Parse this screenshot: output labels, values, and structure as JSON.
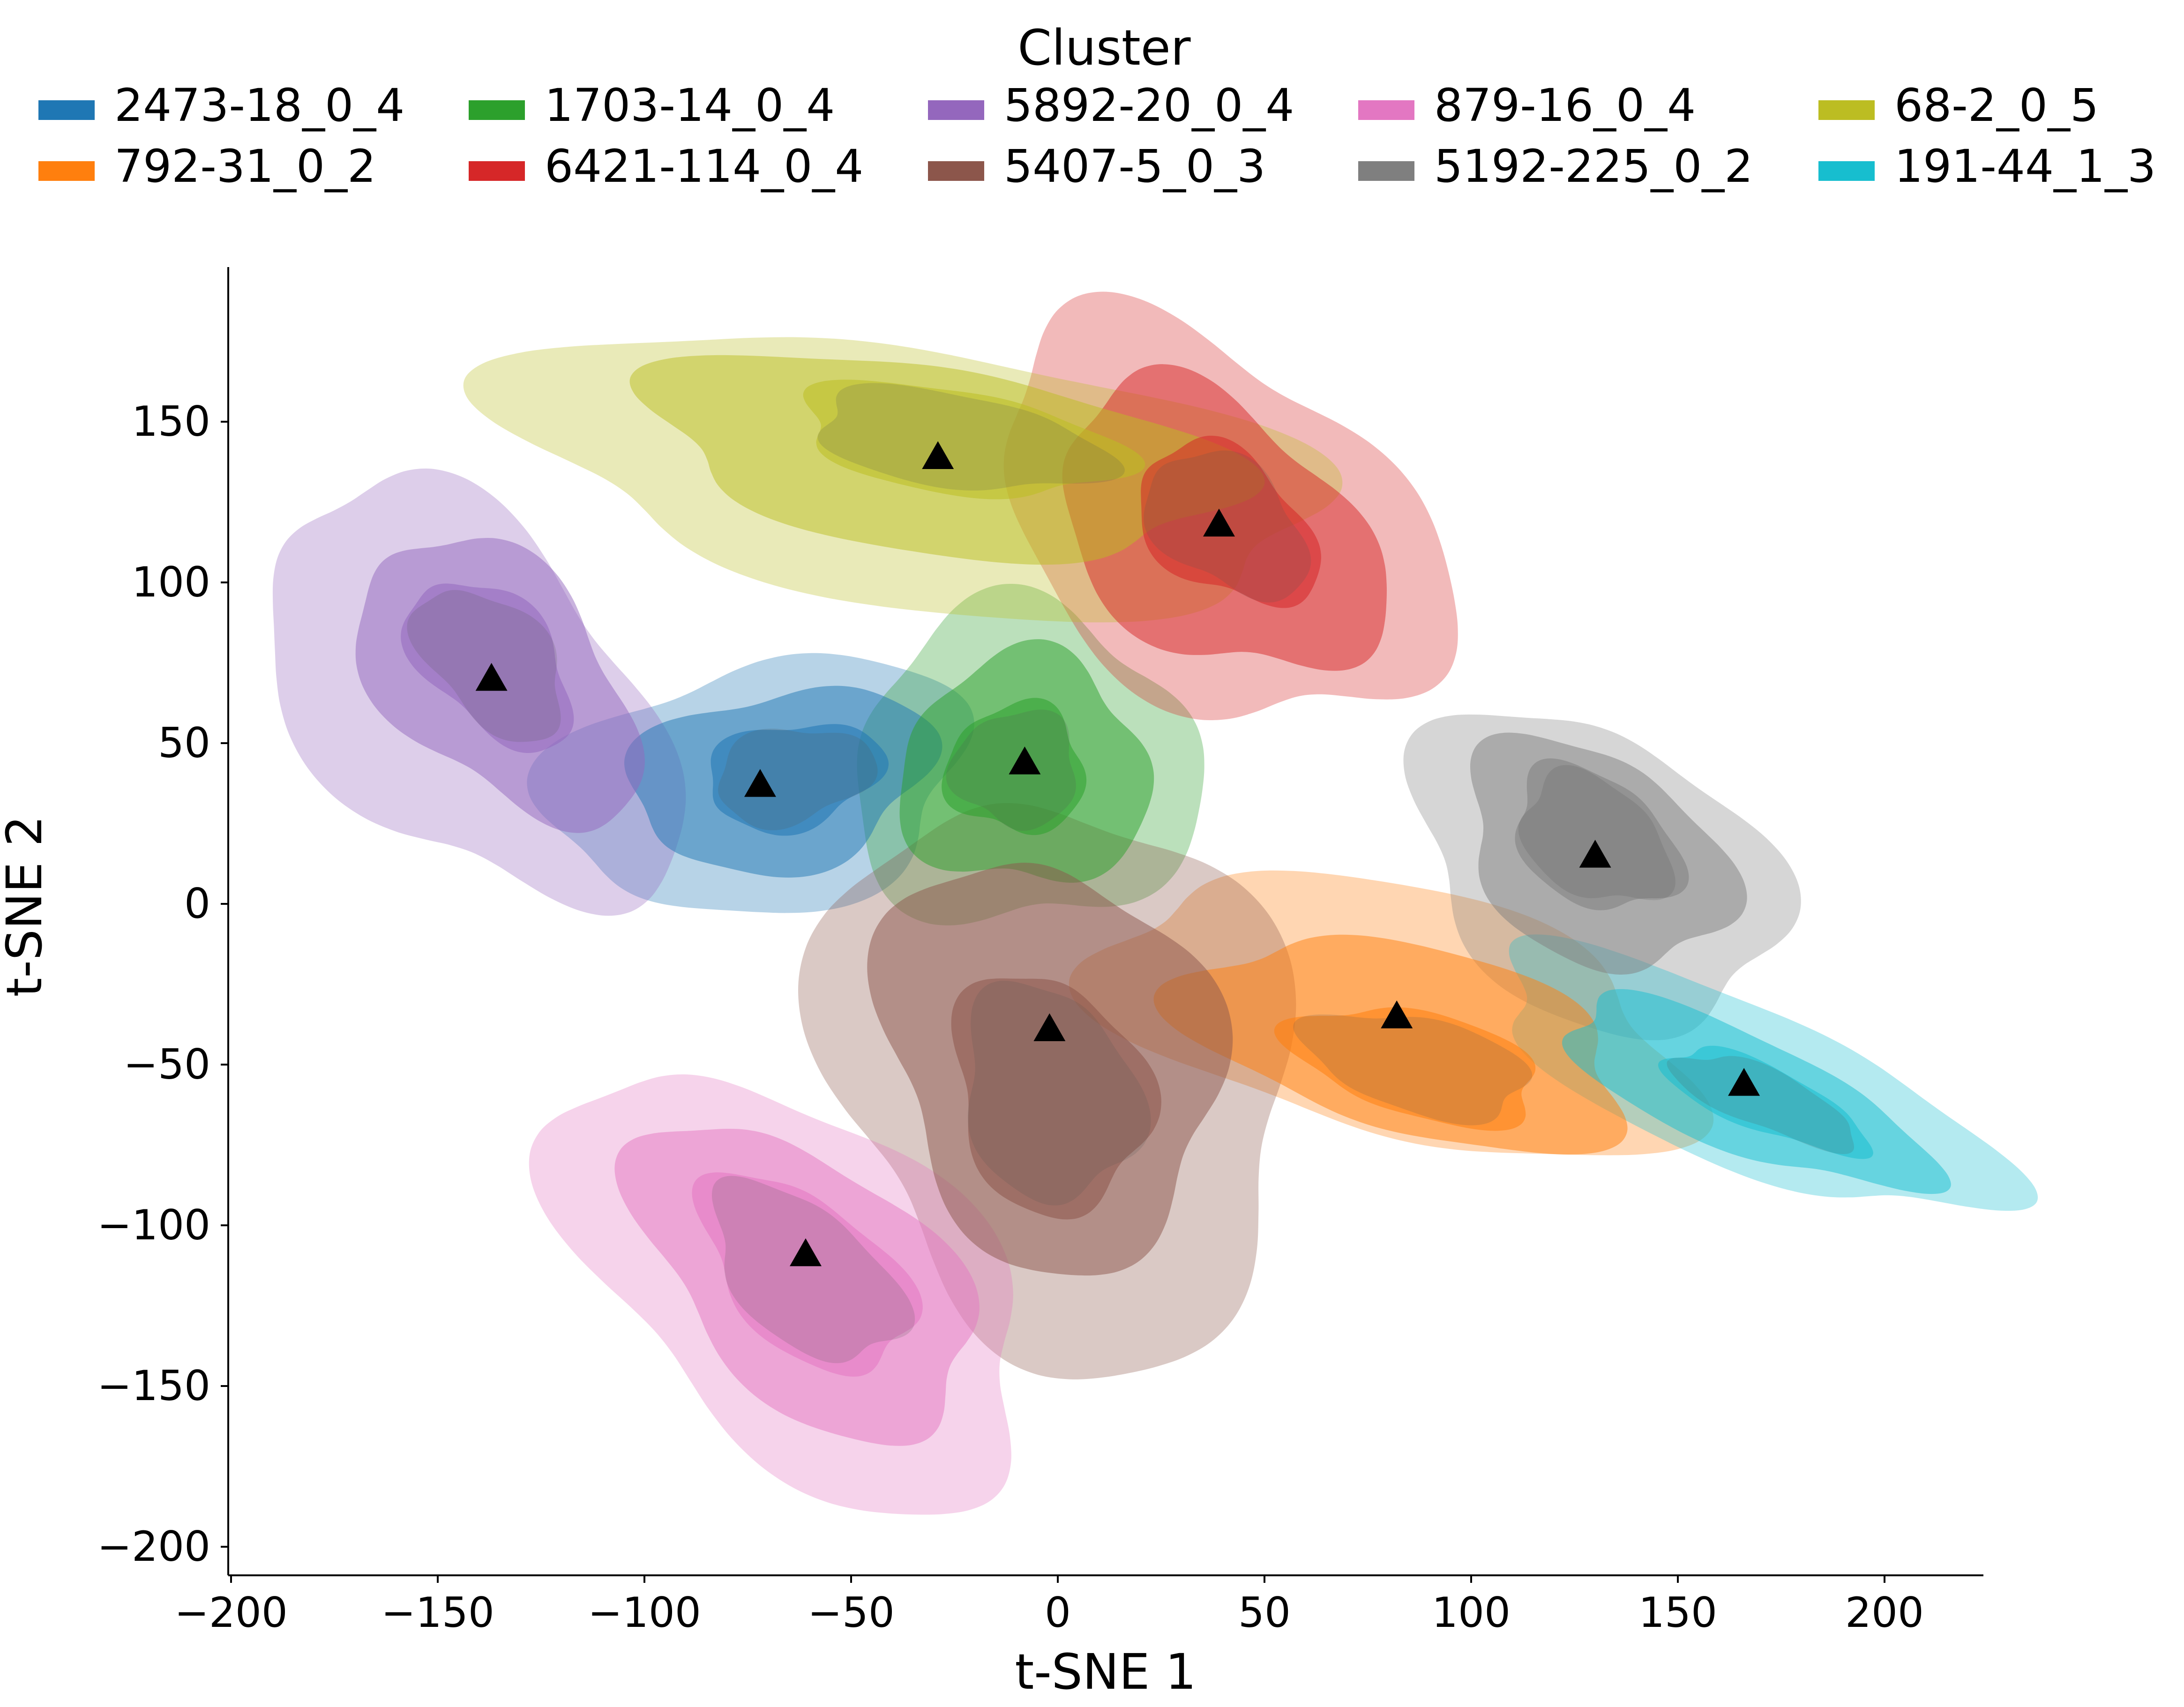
{
  "chart_data": {
    "type": "density-contour",
    "xlabel": "t-SNE 1",
    "ylabel": "t-SNE 2",
    "xlim": [
      -200,
      222
    ],
    "ylim": [
      -208,
      198
    ],
    "xticks": [
      -200,
      -150,
      -100,
      -50,
      0,
      50,
      100,
      150,
      200
    ],
    "yticks": [
      150,
      100,
      50,
      0,
      -50,
      -100,
      -150,
      -200
    ],
    "legend": {
      "title": "Cluster",
      "placement": "top-center",
      "columns": 5
    },
    "series": [
      {
        "name": "2473-18_0_4",
        "color": "#1f77b4",
        "centroid": [
          -72,
          37
        ],
        "rx": 52,
        "ry": 38,
        "rot": 20,
        "offsets": [
          [
            0,
            0,
            1.0
          ],
          [
            5,
            2,
            0.72
          ],
          [
            8,
            3,
            0.42
          ]
        ]
      },
      {
        "name": "792-31_0_2",
        "color": "#ff7f0e",
        "centroid": [
          82,
          -35
        ],
        "rx": 38,
        "ry": 75,
        "rot": 70,
        "offsets": [
          [
            0,
            0,
            1.0
          ],
          [
            3,
            -8,
            0.75
          ],
          [
            5,
            -15,
            0.42
          ]
        ]
      },
      {
        "name": "1703-14_0_4",
        "color": "#2ca02c",
        "centroid": [
          -8,
          44
        ],
        "rx": 42,
        "ry": 50,
        "rot": 0,
        "offsets": [
          [
            0,
            -2,
            1.0
          ],
          [
            0,
            -3,
            0.72
          ],
          [
            -2,
            -2,
            0.4
          ]
        ]
      },
      {
        "name": "6421-114_0_4",
        "color": "#d62728",
        "centroid": [
          39,
          118
        ],
        "rx": 45,
        "ry": 70,
        "rot": 35,
        "offsets": [
          [
            0,
            0,
            1.0
          ],
          [
            0,
            -2,
            0.72
          ],
          [
            2,
            0,
            0.4
          ]
        ]
      },
      {
        "name": "5892-20_0_4",
        "color": "#9467bd",
        "centroid": [
          -137,
          70
        ],
        "rx": 40,
        "ry": 72,
        "rot": 30,
        "offsets": [
          [
            -5,
            -5,
            1.0
          ],
          [
            2,
            0,
            0.68
          ],
          [
            0,
            5,
            0.4
          ]
        ]
      },
      {
        "name": "5407-5_0_3",
        "color": "#8c564b",
        "centroid": [
          -2,
          -39
        ],
        "rx": 55,
        "ry": 90,
        "rot": 10,
        "offsets": [
          [
            3,
            -15,
            1.0
          ],
          [
            0,
            -10,
            0.72
          ],
          [
            0,
            -20,
            0.42
          ]
        ]
      },
      {
        "name": "879-16_0_4",
        "color": "#e377c2",
        "centroid": [
          -61,
          -109
        ],
        "rx": 43,
        "ry": 78,
        "rot": 35,
        "offsets": [
          [
            -2,
            -10,
            1.0
          ],
          [
            0,
            -8,
            0.72
          ],
          [
            0,
            -6,
            0.45
          ]
        ]
      },
      {
        "name": "5192-225_0_2",
        "color": "#7f7f7f",
        "centroid": [
          130,
          15
        ],
        "rx": 38,
        "ry": 55,
        "rot": 35,
        "offsets": [
          [
            0,
            -5,
            1.0
          ],
          [
            0,
            0,
            0.72
          ],
          [
            0,
            5,
            0.45
          ]
        ]
      },
      {
        "name": "68-2_0_5",
        "color": "#bcbd22",
        "centroid": [
          -29,
          139
        ],
        "rx": 40,
        "ry": 100,
        "rot": 78,
        "offsets": [
          [
            -5,
            -5,
            1.0
          ],
          [
            0,
            0,
            0.72
          ],
          [
            5,
            5,
            0.4
          ]
        ]
      },
      {
        "name": "191-44_1_3",
        "color": "#17becf",
        "centroid": [
          166,
          -56
        ],
        "rx": 24,
        "ry": 70,
        "rot": 60,
        "offsets": [
          [
            0,
            0,
            1.0
          ],
          [
            0,
            -3,
            0.72
          ],
          [
            5,
            -5,
            0.4
          ]
        ]
      }
    ]
  }
}
